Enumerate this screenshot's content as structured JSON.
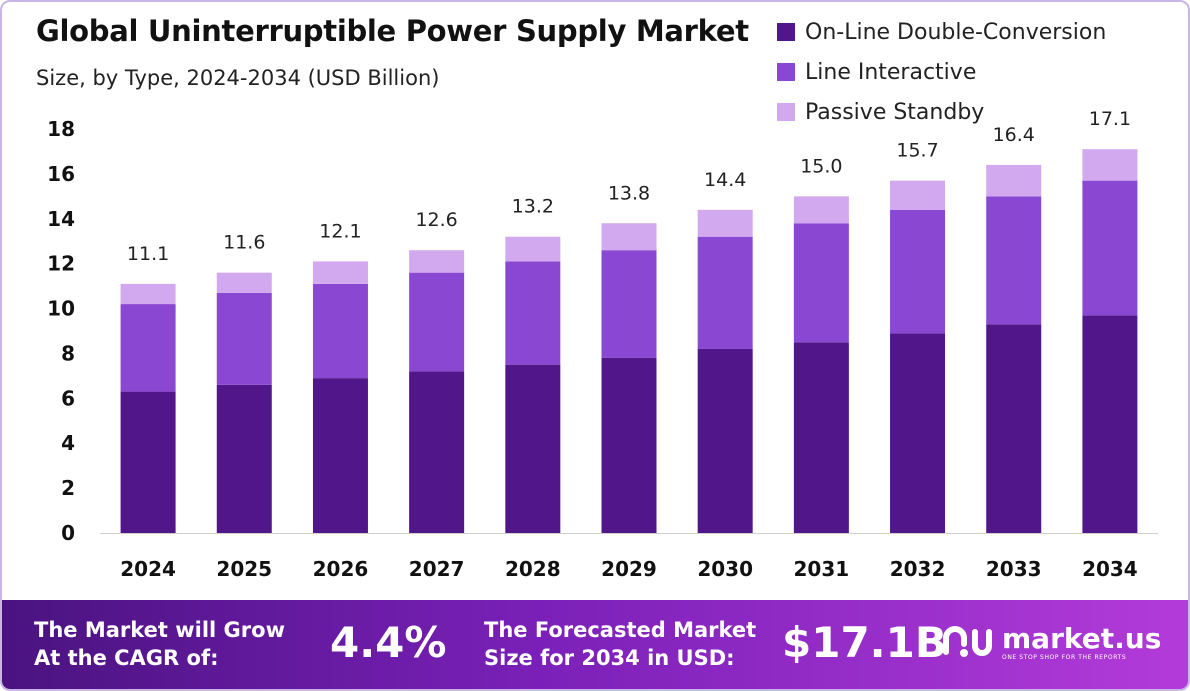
{
  "header": {
    "title": "Global Uninterruptible Power Supply Market",
    "subtitle": "Size, by Type, 2024-2034 (USD Billion)"
  },
  "colors": {
    "online": "#51168a",
    "interactive": "#8a48d2",
    "standby": "#d2a8ee"
  },
  "chart_data": {
    "type": "bar",
    "stacked": true,
    "title": "Global Uninterruptible Power Supply Market",
    "subtitle": "Size, by Type, 2024-2034 (USD Billion)",
    "categories": [
      "2024",
      "2025",
      "2026",
      "2027",
      "2028",
      "2029",
      "2030",
      "2031",
      "2032",
      "2033",
      "2034"
    ],
    "series": [
      {
        "name": "On-Line Double-Conversion",
        "values": [
          6.3,
          6.6,
          6.9,
          7.2,
          7.5,
          7.8,
          8.2,
          8.5,
          8.9,
          9.3,
          9.7
        ]
      },
      {
        "name": "Line Interactive",
        "values": [
          3.9,
          4.1,
          4.2,
          4.4,
          4.6,
          4.8,
          5.0,
          5.3,
          5.5,
          5.7,
          6.0
        ]
      },
      {
        "name": "Passive Standby",
        "values": [
          0.9,
          0.9,
          1.0,
          1.0,
          1.1,
          1.2,
          1.2,
          1.2,
          1.3,
          1.4,
          1.4
        ]
      }
    ],
    "totals": [
      "11.1",
      "11.6",
      "12.1",
      "12.6",
      "13.2",
      "13.8",
      "14.4",
      "15.0",
      "15.7",
      "16.4",
      "17.1"
    ],
    "yticks": [
      "0",
      "2",
      "4",
      "6",
      "8",
      "10",
      "12",
      "14",
      "16",
      "18"
    ],
    "ylim": [
      0,
      18
    ],
    "xlabel": "",
    "ylabel": "",
    "legend_position": "top-right"
  },
  "footer": {
    "cagr_line1": "The Market will Grow",
    "cagr_line2": "At the CAGR of:",
    "cagr_value": "4.4%",
    "forecast_line1": "The Forecasted Market",
    "forecast_line2": "Size for 2034 in USD:",
    "forecast_value": "$17.1B",
    "logo_name": "market.us",
    "logo_tagline": "ONE STOP SHOP FOR THE REPORTS"
  }
}
